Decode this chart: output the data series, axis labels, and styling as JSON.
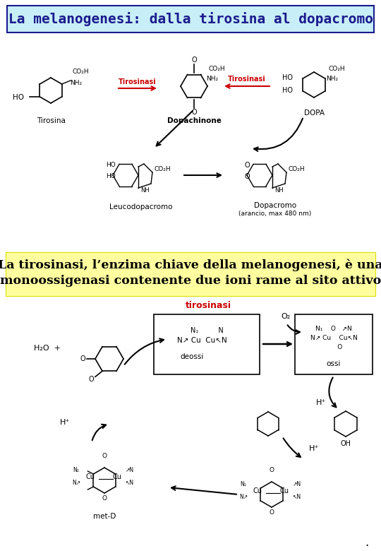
{
  "title": "La melanogenesi: dalla tirosina al dopacromo",
  "title_bg": "#c8eef8",
  "title_color": "#1a1a8c",
  "title_fontsize": 14,
  "banner2_text_line1": "La tirosinasi, l’enzima chiave della melanogenesi, è una",
  "banner2_text_line2": "monoossigenasi contenente due ioni rame al sito attivo",
  "banner2_bg": "#ffffa0",
  "banner2_color": "#000000",
  "banner2_fontsize": 12.5,
  "fig_bg": "#ffffff",
  "tirosinasi_color": "#cc0000",
  "black": "#000000",
  "gray_box": "#f0f0f0",
  "box_edge": "#444444"
}
